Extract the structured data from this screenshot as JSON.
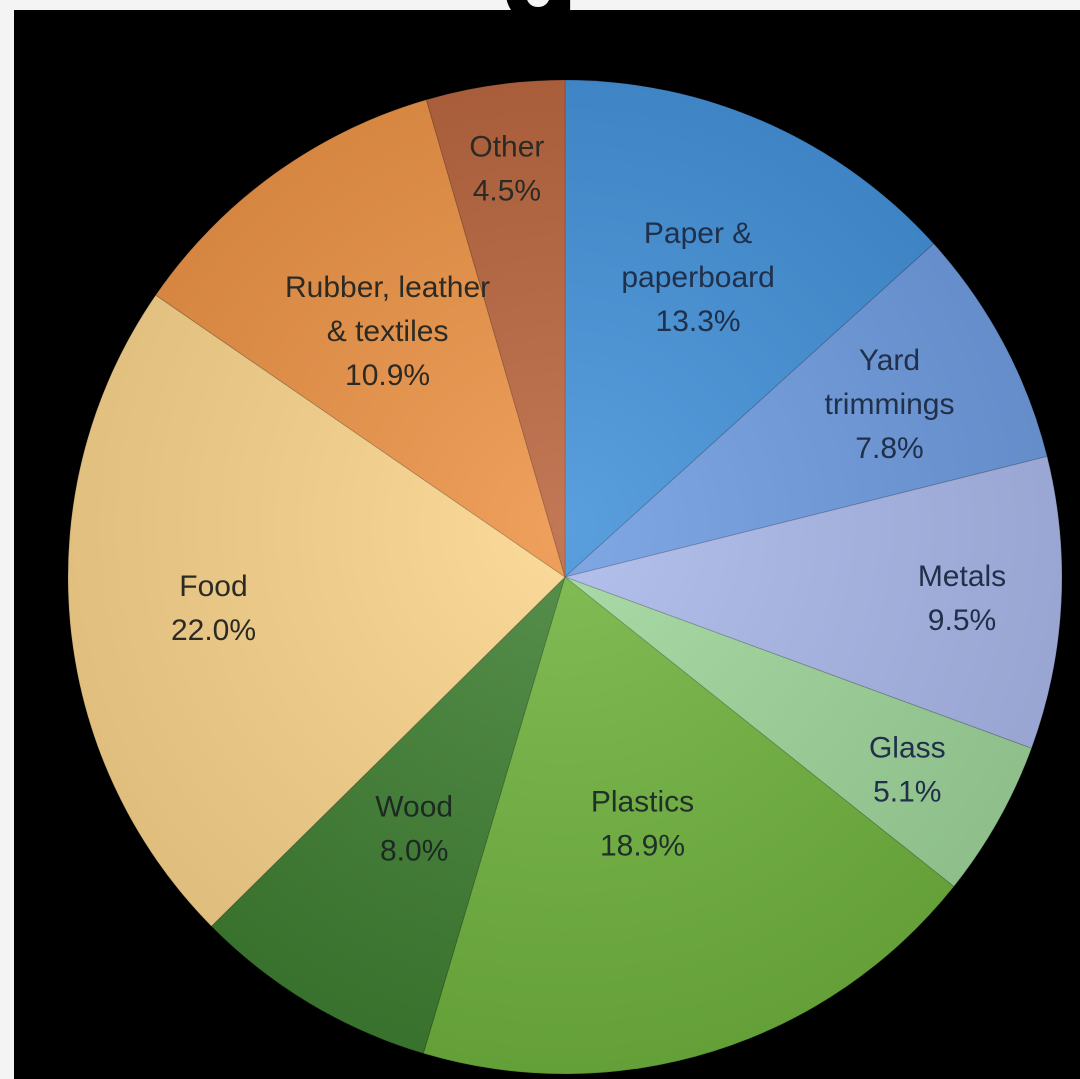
{
  "page": {
    "top_glyph": "g"
  },
  "chart_data": {
    "type": "pie",
    "title": "",
    "start": "top",
    "direction": "clockwise",
    "legend": "none",
    "slices": [
      {
        "label_lines": [
          "Paper &",
          "paperboard"
        ],
        "value": 13.3,
        "value_label": "13.3%",
        "color": "#3f8fd8",
        "text_color": "#20304a"
      },
      {
        "label_lines": [
          "Yard",
          "trimmings"
        ],
        "value": 7.8,
        "value_label": "7.8%",
        "color": "#6c9ae0",
        "text_color": "#20304a"
      },
      {
        "label_lines": [
          "Metals"
        ],
        "value": 9.5,
        "value_label": "9.5%",
        "color": "#a9b7ea",
        "text_color": "#20304a"
      },
      {
        "label_lines": [
          "Glass"
        ],
        "value": 5.1,
        "value_label": "5.1%",
        "color": "#9ed69a",
        "text_color": "#20304a"
      },
      {
        "label_lines": [
          "Plastics"
        ],
        "value": 18.9,
        "value_label": "18.9%",
        "color": "#6fb33c",
        "text_color": "#1f2f2a"
      },
      {
        "label_lines": [
          "Wood"
        ],
        "value": 8.0,
        "value_label": "8.0%",
        "color": "#3d7e30",
        "text_color": "#1c2a22"
      },
      {
        "label_lines": [
          "Food"
        ],
        "value": 22.0,
        "value_label": "22.0%",
        "color": "#fbd48a",
        "text_color": "#2c2a24"
      },
      {
        "label_lines": [
          "Rubber, leather",
          "& textiles"
        ],
        "value": 10.9,
        "value_label": "10.9%",
        "color": "#ec9142",
        "text_color": "#2c2a24"
      },
      {
        "label_lines": [
          "Other"
        ],
        "value": 4.5,
        "value_label": "4.5%",
        "color": "#b8623a",
        "text_color": "#2c2a24"
      }
    ]
  }
}
